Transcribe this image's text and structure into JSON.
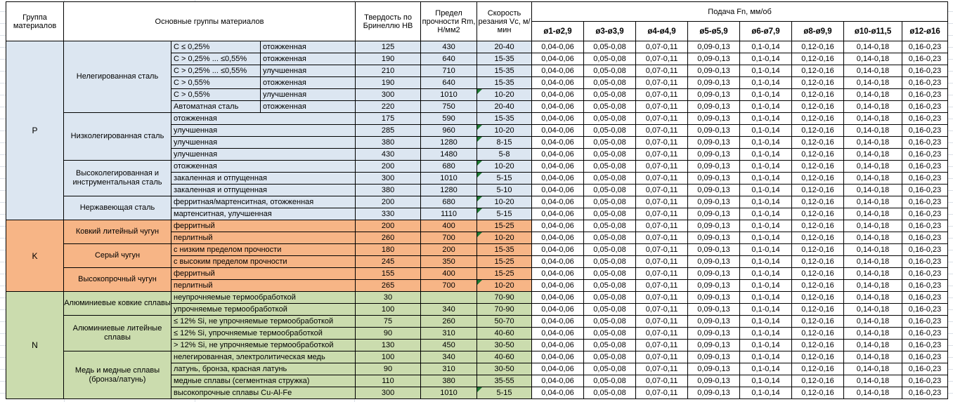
{
  "table": {
    "header": {
      "col_group": "Группа материалов",
      "col_materials": "Основные группы материалов",
      "col_hb": "Твердость по Бринеллю HB",
      "col_rm": "Предел прочности Rm, Н/мм2",
      "col_vc": "Скорость резания Vc, м/мин",
      "feed_title": "Подача Fn, мм/об",
      "feed_cols": [
        "ø1-ø2,9",
        "ø3-ø3,9",
        "ø4-ø4,9",
        "ø5-ø5,9",
        "ø6-ø7,9",
        "ø8-ø9,9",
        "ø10-ø11,5",
        "ø12-ø16"
      ]
    },
    "feed_values": [
      "0,04-0,06",
      "0,05-0,08",
      "0,07-0,11",
      "0,09-0,13",
      "0,1-0,14",
      "0,12-0,16",
      "0,14-0,18",
      "0,16-0,23"
    ],
    "groups": [
      {
        "code": "P",
        "color": "#dce6f1",
        "families": [
          {
            "name": "Нелегированная сталь",
            "rows": [
              {
                "spec": "C ≤ 0,25%",
                "state": "отожженная",
                "hb": "125",
                "rm": "430",
                "vc": "20-40",
                "note": false
              },
              {
                "spec": "C > 0,25% ... ≤0,55%",
                "state": "отожженная",
                "hb": "190",
                "rm": "640",
                "vc": "15-35",
                "note": false
              },
              {
                "spec": "C > 0,25% ... ≤0,55%",
                "state": "улучшенная",
                "hb": "210",
                "rm": "710",
                "vc": "15-35",
                "note": false
              },
              {
                "spec": "C > 0,55%",
                "state": "отожженная",
                "hb": "190",
                "rm": "640",
                "vc": "15-35",
                "note": false
              },
              {
                "spec": "C > 0,55%",
                "state": "улучшенная",
                "hb": "300",
                "rm": "1010",
                "vc": "10-20",
                "note": true
              },
              {
                "spec": "Автоматная сталь",
                "state": "отожженная",
                "hb": "220",
                "rm": "750",
                "vc": "20-40",
                "note": false
              }
            ]
          },
          {
            "name": "Низколегированная сталь",
            "rows": [
              {
                "desc": "отожженная",
                "hb": "175",
                "rm": "590",
                "vc": "15-35",
                "note": false
              },
              {
                "desc": "улучшенная",
                "hb": "285",
                "rm": "960",
                "vc": "10-20",
                "note": true
              },
              {
                "desc": "улучшенная",
                "hb": "380",
                "rm": "1280",
                "vc": "8-15",
                "note": true
              },
              {
                "desc": "улучшенная",
                "hb": "430",
                "rm": "1480",
                "vc": "5-8",
                "note": false
              }
            ]
          },
          {
            "name": "Высоколегированная и инструментальная сталь",
            "rows": [
              {
                "desc": "отожженная",
                "hb": "200",
                "rm": "680",
                "vc": "10-20",
                "note": true
              },
              {
                "desc": "закаленная и отпущенная",
                "hb": "300",
                "rm": "1010",
                "vc": "5-15",
                "note": true
              },
              {
                "desc": "закаленная и отпущенная",
                "hb": "380",
                "rm": "1280",
                "vc": "5-10",
                "note": false
              }
            ]
          },
          {
            "name": "Нержавеющая сталь",
            "rows": [
              {
                "desc": "ферритная/мартенситная, отожженная",
                "hb": "200",
                "rm": "680",
                "vc": "10-20",
                "note": true
              },
              {
                "desc": "мартенситная, улучшенная",
                "hb": "330",
                "rm": "1110",
                "vc": "5-15",
                "note": true
              }
            ]
          }
        ]
      },
      {
        "code": "K",
        "color": "#f7b586",
        "families": [
          {
            "name": "Ковкий литейный чугун",
            "rows": [
              {
                "desc": "ферритный",
                "hb": "200",
                "rm": "400",
                "vc": "15-25",
                "note": false
              },
              {
                "desc": "перлитный",
                "hb": "260",
                "rm": "700",
                "vc": "10-20",
                "note": true
              }
            ]
          },
          {
            "name": "Серый чугун",
            "rows": [
              {
                "desc": "с низким пределом прочности",
                "hb": "180",
                "rm": "200",
                "vc": "15-35",
                "note": false
              },
              {
                "desc": "с высоким пределом прочности",
                "hb": "245",
                "rm": "350",
                "vc": "15-25",
                "note": false
              }
            ]
          },
          {
            "name": "Высокопрочный чугун",
            "rows": [
              {
                "desc": "ферритный",
                "hb": "155",
                "rm": "400",
                "vc": "15-25",
                "note": false
              },
              {
                "desc": "перлитный",
                "hb": "265",
                "rm": "700",
                "vc": "10-20",
                "note": true
              }
            ]
          }
        ]
      },
      {
        "code": "N",
        "color": "#cbdcae",
        "families": [
          {
            "name": "Алюминиевые ковкие сплавы",
            "rows": [
              {
                "desc": "неупрочняемые термообработкой",
                "hb": "30",
                "rm": "",
                "vc": "70-90",
                "note": false
              },
              {
                "desc": "упрочняемые термообработкой",
                "hb": "100",
                "rm": "340",
                "vc": "70-90",
                "note": false
              }
            ]
          },
          {
            "name": "Алюминиевые литейные сплавы",
            "rows": [
              {
                "desc": "≤ 12% Si, не упрочняемые термообработкой",
                "hb": "75",
                "rm": "260",
                "vc": "50-70",
                "note": false
              },
              {
                "desc": "≤ 12% Si, упрочняемые термообработкой",
                "hb": "90",
                "rm": "310",
                "vc": "40-60",
                "note": false
              },
              {
                "desc": "> 12% Si, не упрочняемые термообработкой",
                "hb": "130",
                "rm": "450",
                "vc": "30-50",
                "note": false
              }
            ]
          },
          {
            "name": "Медь и медные сплавы (бронза/латунь)",
            "rows": [
              {
                "desc": "нелегированная, электролитическая медь",
                "hb": "100",
                "rm": "340",
                "vc": "40-60",
                "note": false
              },
              {
                "desc": "латунь, бронза, красная латунь",
                "hb": "90",
                "rm": "310",
                "vc": "30-50",
                "note": false
              },
              {
                "desc": "медные сплавы (сегментная стружка)",
                "hb": "110",
                "rm": "380",
                "vc": "35-55",
                "note": false
              },
              {
                "desc": "высокопрочные сплавы Cu-Al-Fe",
                "hb": "300",
                "rm": "1010",
                "vc": "5-15",
                "note": true
              }
            ]
          }
        ]
      }
    ]
  },
  "colors": {
    "group_p": "#dce6f1",
    "group_k": "#f7b586",
    "group_n": "#cbdcae",
    "note_marker": "#1f7a33",
    "border": "#000000",
    "gridline": "#dbe0e7"
  }
}
